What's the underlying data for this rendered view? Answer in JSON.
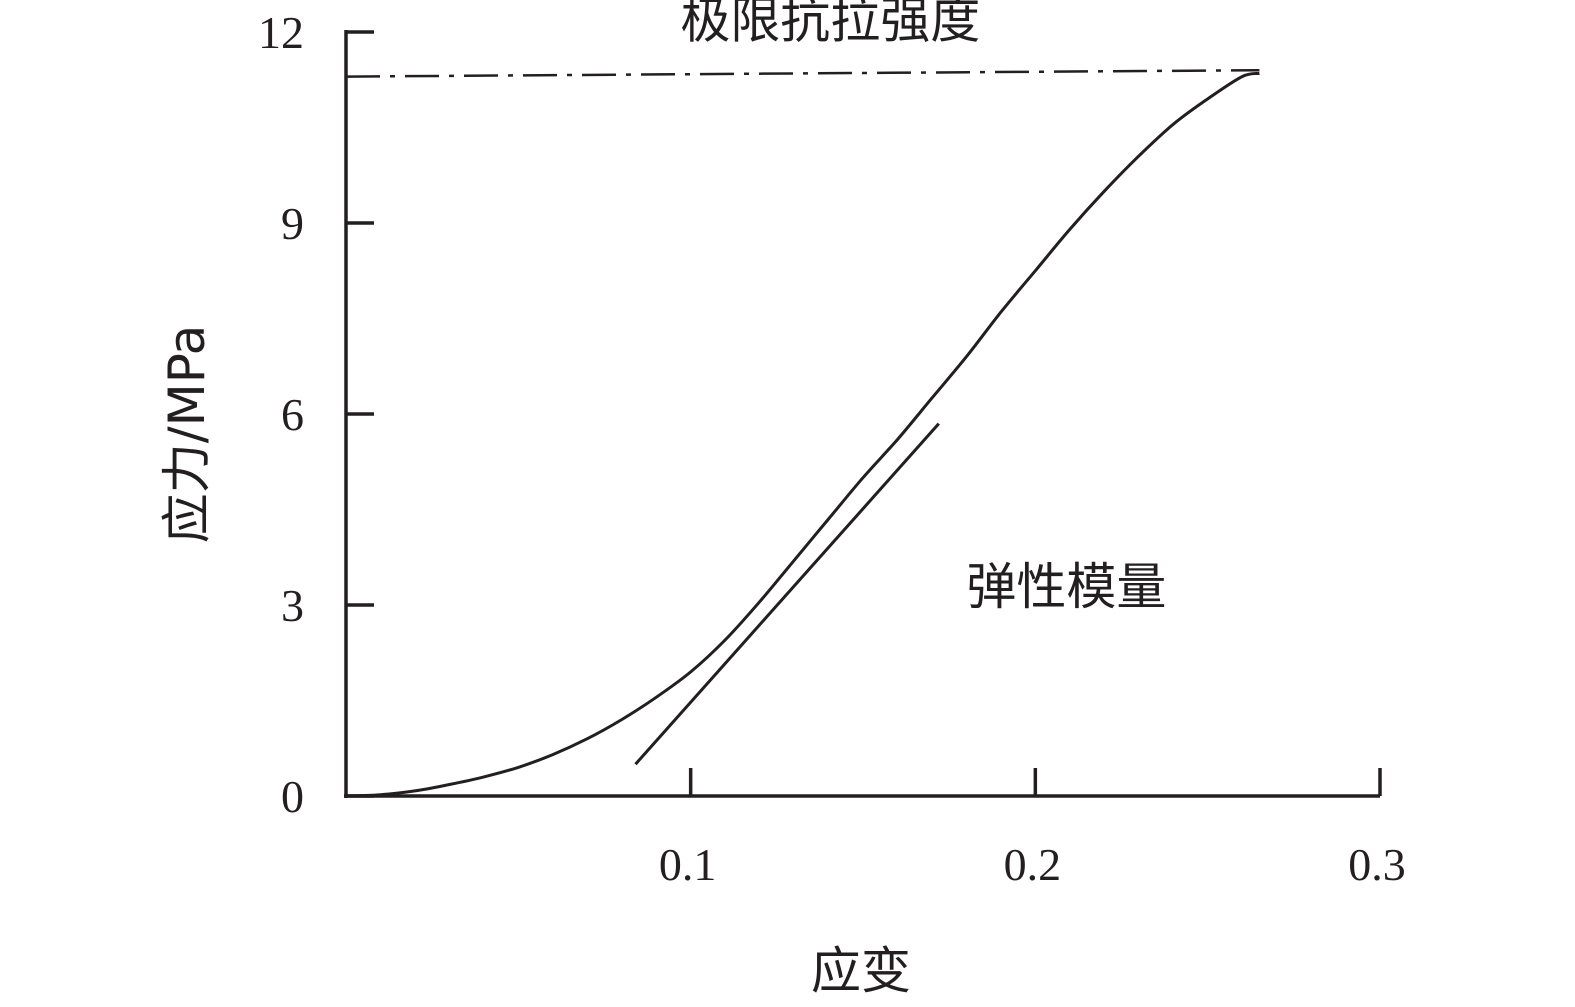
{
  "chart_data": {
    "type": "line",
    "title": "",
    "xlabel": "应变",
    "ylabel": "应力/MPa",
    "xlim": [
      0,
      0.3
    ],
    "ylim": [
      0,
      12
    ],
    "x_ticks": [
      0.1,
      0.2,
      0.3
    ],
    "x_tick_labels": [
      "0.1",
      "0.2",
      "0.3"
    ],
    "y_ticks": [
      0,
      3,
      6,
      9,
      12
    ],
    "y_tick_labels": [
      "0",
      "3",
      "6",
      "9",
      "12"
    ],
    "grid": false,
    "series": [
      {
        "style": "solid",
        "x": [
          0,
          0.01,
          0.02,
          0.03,
          0.04,
          0.05,
          0.06,
          0.07,
          0.08,
          0.09,
          0.1,
          0.11,
          0.12,
          0.13,
          0.14,
          0.15,
          0.16,
          0.17,
          0.18,
          0.19,
          0.2,
          0.21,
          0.22,
          0.23,
          0.24,
          0.25,
          0.26,
          0.265
        ],
        "y": [
          0.0,
          0.02,
          0.08,
          0.18,
          0.3,
          0.45,
          0.65,
          0.9,
          1.2,
          1.55,
          1.95,
          2.45,
          3.05,
          3.7,
          4.35,
          5.0,
          5.6,
          6.25,
          6.9,
          7.6,
          8.25,
          8.9,
          9.5,
          10.05,
          10.55,
          10.95,
          11.3,
          11.35
        ]
      },
      {
        "style": "dash-dot",
        "x": [
          0,
          0.265
        ],
        "y": [
          11.3,
          11.4
        ]
      },
      {
        "style": "solid-tangent",
        "x": [
          0.084,
          0.172
        ],
        "y": [
          0.5,
          5.85
        ]
      }
    ],
    "annotations": [
      {
        "text": "极限抗拉强度",
        "x": 0.097,
        "y": 12.2
      },
      {
        "text": "弹性模量",
        "x": 0.18,
        "y": 3.3
      }
    ],
    "line_color": "#231f20"
  }
}
